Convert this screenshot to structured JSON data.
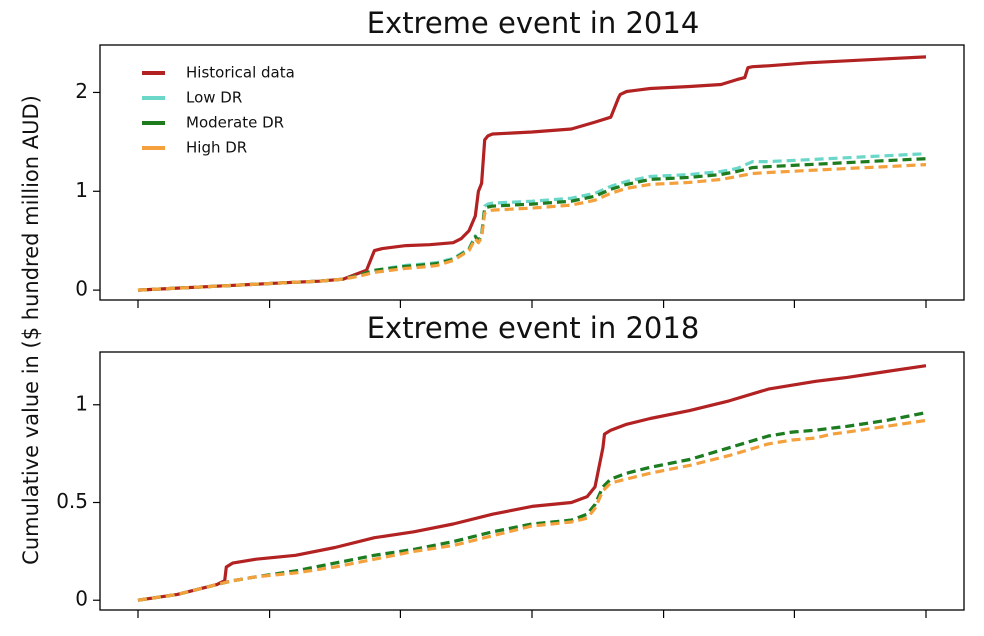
{
  "figure": {
    "ylabel": "Cumulative value in ($ hundred million AUD)"
  },
  "chart_data": [
    {
      "type": "line",
      "title": "Extreme event in 2014",
      "xlabel": "",
      "ylabel": "Cumulative value in ($ hundred million AUD)",
      "xlim": [
        0,
        100
      ],
      "ylim": [
        -0.1,
        2.48
      ],
      "yticks": [
        0,
        1,
        2
      ],
      "ytick_labels": [
        "0",
        "1",
        "2"
      ],
      "xticks": [
        0,
        16.7,
        33.3,
        50,
        66.7,
        83.3,
        100
      ],
      "xtick_labels": [],
      "grid": false,
      "legend": "top-left",
      "series": [
        {
          "name": "Historical data",
          "color": "#b22222",
          "style": "solid",
          "x": [
            0,
            5,
            10,
            15,
            20,
            23,
            26,
            28,
            29,
            30,
            31,
            34,
            37,
            40,
            41,
            42,
            42.8,
            43.2,
            43.6,
            44,
            44.4,
            45,
            50,
            55,
            58,
            60,
            61,
            61.2,
            62,
            65,
            70,
            74,
            76,
            77,
            77.4,
            78,
            80,
            85,
            90,
            95,
            100
          ],
          "y": [
            0,
            0.02,
            0.04,
            0.06,
            0.08,
            0.09,
            0.11,
            0.17,
            0.2,
            0.4,
            0.42,
            0.45,
            0.46,
            0.48,
            0.52,
            0.6,
            0.75,
            1.0,
            1.08,
            1.52,
            1.56,
            1.58,
            1.6,
            1.63,
            1.7,
            1.75,
            1.95,
            1.98,
            2.01,
            2.04,
            2.06,
            2.08,
            2.13,
            2.15,
            2.25,
            2.26,
            2.27,
            2.3,
            2.32,
            2.34,
            2.36
          ]
        },
        {
          "name": "Low DR",
          "color": "#6ad7c9",
          "style": "dashed",
          "x": [
            0,
            5,
            10,
            15,
            20,
            23,
            26,
            28,
            30,
            34,
            37,
            38,
            40,
            41,
            42,
            42.8,
            43.2,
            43.6,
            44,
            44.4,
            45,
            50,
            55,
            58,
            60,
            62,
            65,
            70,
            74,
            76,
            78,
            80,
            85,
            90,
            95,
            100
          ],
          "y": [
            0,
            0.02,
            0.04,
            0.06,
            0.08,
            0.09,
            0.11,
            0.15,
            0.2,
            0.25,
            0.27,
            0.28,
            0.32,
            0.37,
            0.42,
            0.55,
            0.5,
            0.56,
            0.85,
            0.87,
            0.88,
            0.9,
            0.93,
            0.98,
            1.05,
            1.1,
            1.15,
            1.17,
            1.2,
            1.23,
            1.3,
            1.3,
            1.32,
            1.34,
            1.36,
            1.38
          ]
        },
        {
          "name": "Moderate DR",
          "color": "#1e7b1e",
          "style": "dashed",
          "x": [
            0,
            5,
            10,
            15,
            20,
            23,
            26,
            28,
            30,
            34,
            37,
            38,
            40,
            41,
            42,
            42.8,
            43.2,
            43.6,
            44,
            44.4,
            45,
            50,
            55,
            58,
            60,
            62,
            65,
            70,
            74,
            76,
            78,
            80,
            85,
            90,
            95,
            100
          ],
          "y": [
            0,
            0.02,
            0.04,
            0.06,
            0.08,
            0.09,
            0.11,
            0.15,
            0.2,
            0.24,
            0.26,
            0.27,
            0.31,
            0.36,
            0.41,
            0.54,
            0.5,
            0.55,
            0.83,
            0.84,
            0.85,
            0.87,
            0.9,
            0.95,
            1.02,
            1.07,
            1.12,
            1.14,
            1.17,
            1.2,
            1.24,
            1.25,
            1.27,
            1.29,
            1.31,
            1.33
          ]
        },
        {
          "name": "High DR",
          "color": "#f4a03c",
          "style": "dashed",
          "x": [
            0,
            5,
            10,
            15,
            20,
            23,
            26,
            28,
            30,
            34,
            37,
            38,
            40,
            41,
            42,
            42.8,
            43.2,
            43.6,
            44,
            44.4,
            45,
            50,
            55,
            58,
            60,
            62,
            65,
            70,
            74,
            76,
            78,
            80,
            85,
            90,
            95,
            100
          ],
          "y": [
            0,
            0.02,
            0.04,
            0.06,
            0.08,
            0.09,
            0.11,
            0.14,
            0.18,
            0.22,
            0.24,
            0.25,
            0.3,
            0.35,
            0.4,
            0.52,
            0.48,
            0.53,
            0.78,
            0.8,
            0.81,
            0.83,
            0.86,
            0.91,
            0.98,
            1.03,
            1.07,
            1.09,
            1.12,
            1.15,
            1.18,
            1.19,
            1.21,
            1.23,
            1.25,
            1.27
          ]
        }
      ]
    },
    {
      "type": "line",
      "title": "Extreme event in 2018",
      "xlabel": "",
      "ylabel": "Cumulative value in ($ hundred million AUD)",
      "xlim": [
        0,
        100
      ],
      "ylim": [
        -0.05,
        1.27
      ],
      "yticks": [
        0,
        0.5,
        1
      ],
      "ytick_labels": [
        "0",
        "0.5",
        "1"
      ],
      "xticks": [
        0,
        16.7,
        33.3,
        50,
        66.7,
        83.3,
        100
      ],
      "xtick_labels": [],
      "grid": false,
      "legend": "none",
      "series": [
        {
          "name": "Historical data",
          "color": "#b22222",
          "style": "solid",
          "x": [
            0,
            5,
            10,
            11,
            11.2,
            12,
            15,
            20,
            25,
            30,
            35,
            40,
            45,
            50,
            55,
            57,
            58,
            59,
            59.2,
            60,
            62,
            65,
            70,
            75,
            80,
            83,
            86,
            88,
            90,
            95,
            100
          ],
          "y": [
            0,
            0.03,
            0.08,
            0.1,
            0.17,
            0.19,
            0.21,
            0.23,
            0.27,
            0.32,
            0.35,
            0.39,
            0.44,
            0.48,
            0.5,
            0.53,
            0.58,
            0.78,
            0.85,
            0.87,
            0.9,
            0.93,
            0.97,
            1.02,
            1.08,
            1.1,
            1.12,
            1.13,
            1.14,
            1.17,
            1.2
          ]
        },
        {
          "name": "Low DR",
          "color": "#6ad7c9",
          "style": "dashed",
          "x": [
            0,
            5,
            10,
            12,
            15,
            20,
            25,
            30,
            35,
            40,
            45,
            50,
            55,
            57,
            58,
            59,
            60,
            62,
            65,
            70,
            75,
            80,
            83,
            86,
            88,
            90,
            95,
            100
          ],
          "y": [
            0,
            0.03,
            0.08,
            0.1,
            0.12,
            0.15,
            0.19,
            0.23,
            0.26,
            0.3,
            0.35,
            0.39,
            0.41,
            0.44,
            0.49,
            0.58,
            0.62,
            0.65,
            0.68,
            0.72,
            0.78,
            0.84,
            0.86,
            0.87,
            0.88,
            0.89,
            0.92,
            0.96
          ]
        },
        {
          "name": "Moderate DR",
          "color": "#1e7b1e",
          "style": "dashed",
          "x": [
            0,
            5,
            10,
            12,
            15,
            20,
            25,
            30,
            35,
            40,
            45,
            50,
            55,
            57,
            58,
            59,
            60,
            62,
            65,
            70,
            75,
            80,
            83,
            86,
            88,
            90,
            95,
            100
          ],
          "y": [
            0,
            0.03,
            0.08,
            0.1,
            0.12,
            0.15,
            0.19,
            0.23,
            0.26,
            0.3,
            0.35,
            0.39,
            0.41,
            0.44,
            0.49,
            0.58,
            0.62,
            0.65,
            0.68,
            0.72,
            0.78,
            0.84,
            0.86,
            0.87,
            0.88,
            0.89,
            0.92,
            0.96
          ]
        },
        {
          "name": "High DR",
          "color": "#f4a03c",
          "style": "dashed",
          "x": [
            0,
            5,
            10,
            12,
            15,
            20,
            25,
            30,
            35,
            40,
            45,
            50,
            55,
            57,
            58,
            59,
            60,
            62,
            65,
            70,
            75,
            80,
            83,
            86,
            88,
            90,
            95,
            100
          ],
          "y": [
            0,
            0.03,
            0.08,
            0.1,
            0.12,
            0.14,
            0.17,
            0.21,
            0.25,
            0.28,
            0.33,
            0.38,
            0.4,
            0.42,
            0.47,
            0.56,
            0.6,
            0.62,
            0.65,
            0.69,
            0.74,
            0.8,
            0.82,
            0.83,
            0.85,
            0.86,
            0.89,
            0.92
          ]
        }
      ]
    }
  ]
}
